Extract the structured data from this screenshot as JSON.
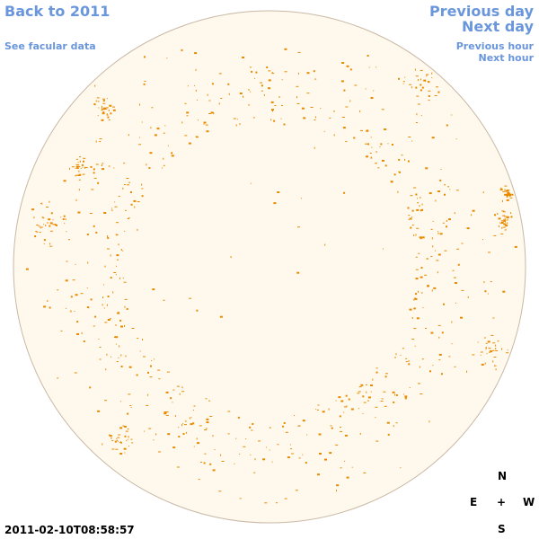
{
  "nav": {
    "back_to_year": "Back to 2011",
    "see_facular": "See facular data",
    "previous_day": "Previous day",
    "next_day": "Next day",
    "previous_hour": "Previous hour",
    "next_hour": "Next hour"
  },
  "compass": {
    "north": "N",
    "south": "S",
    "east": "E",
    "west": "W",
    "center": "+"
  },
  "timestamp": "2011-02-10T08:58:57",
  "colors": {
    "disk_fill": "#fef9ec",
    "disk_outline": "#c9b8a6",
    "facula": "#e88a00",
    "link": "#6a96dc"
  }
}
